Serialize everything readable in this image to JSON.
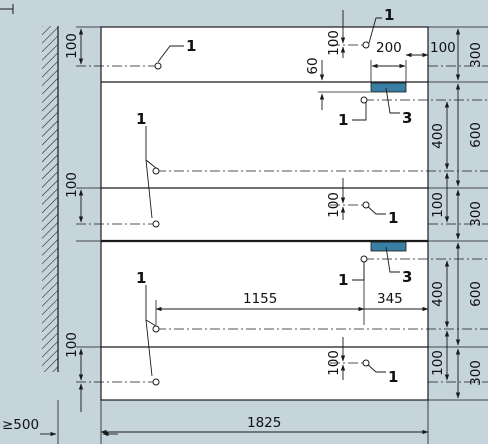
{
  "colors": {
    "background": "#c6d4dc",
    "panel": "#ffffff",
    "line": "#1a1a1a",
    "marker": "#3a7fa3"
  },
  "drawing": {
    "callouts": {
      "hole_label": "1",
      "marker_label": "3"
    },
    "dimensions": {
      "total_width": "1825",
      "wall_clearance": "≥500",
      "left_hole_offset": "100",
      "top_hole_drop": "100",
      "marker_spacing": "60",
      "marker_width": "200",
      "right_offset": "100",
      "upper_hole_span": "400",
      "lower_hole_span": "400",
      "hole_pitch": "100",
      "row_height_small": "300",
      "row_height_large": "600",
      "hole_x_left": "1155",
      "hole_x_right": "345"
    }
  }
}
